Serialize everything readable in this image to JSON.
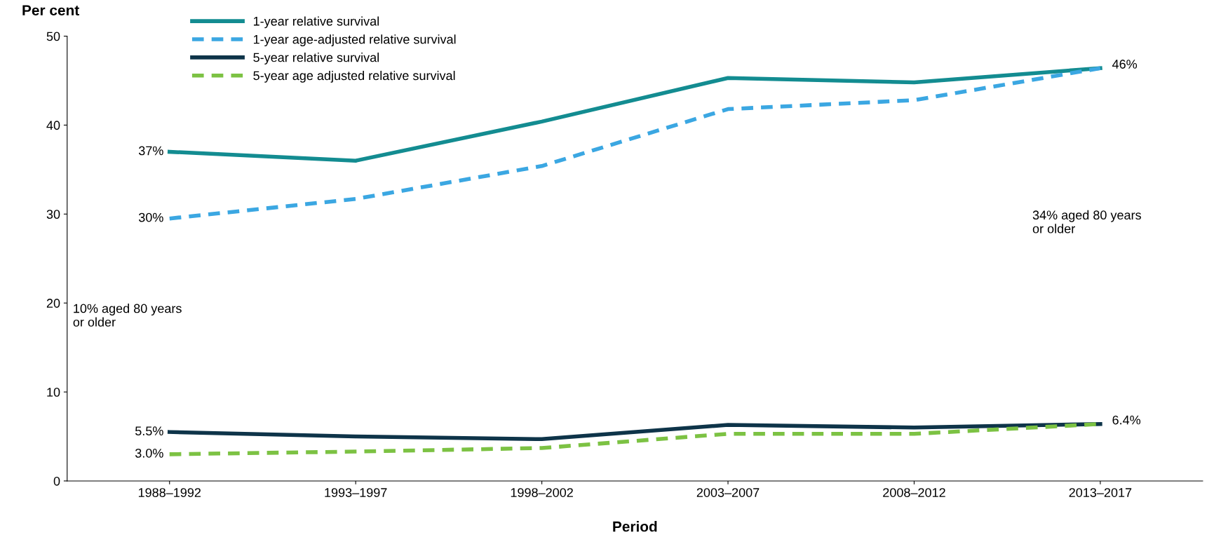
{
  "chart_data": {
    "type": "line",
    "xlabel": "Period",
    "ylabel": "Per cent",
    "categories": [
      "1988–1992",
      "1993–1997",
      "1998–2002",
      "2003–2007",
      "2008–2012",
      "2013–2017"
    ],
    "series": [
      {
        "name": "1-year relative survival",
        "color": "#138c91",
        "line_style": "solid",
        "values": [
          37,
          36,
          40.4,
          45.3,
          44.8,
          46.4
        ],
        "value_labels": [
          "37%",
          null,
          null,
          null,
          null,
          "46%"
        ]
      },
      {
        "name": "1-year age-adjusted relative survival",
        "color": "#3ba7e2",
        "line_style": "dashed",
        "values": [
          29.5,
          31.7,
          35.4,
          41.8,
          42.8,
          46.4
        ],
        "value_labels": [
          "30%",
          null,
          null,
          null,
          null,
          null
        ]
      },
      {
        "name": "5-year relative survival",
        "color": "#0e3449",
        "line_style": "solid",
        "values": [
          5.5,
          5.0,
          4.7,
          6.3,
          6.0,
          6.4
        ],
        "value_labels": [
          "5.5%",
          null,
          null,
          null,
          null,
          "6.4%"
        ]
      },
      {
        "name": "5-year age adjusted relative survival",
        "color": "#7cc243",
        "line_style": "dashed",
        "values": [
          3.0,
          3.3,
          3.7,
          5.3,
          5.3,
          6.4
        ],
        "value_labels": [
          "3.0%",
          null,
          null,
          null,
          null,
          null
        ]
      }
    ],
    "ylim": [
      0,
      50
    ],
    "yticks": [
      0,
      10,
      20,
      30,
      40,
      50
    ],
    "grid": false,
    "legend": "top left",
    "marker": "none",
    "annotations": [
      "10% aged 80 years\nor older",
      "34% aged 80 years\nor older"
    ]
  }
}
